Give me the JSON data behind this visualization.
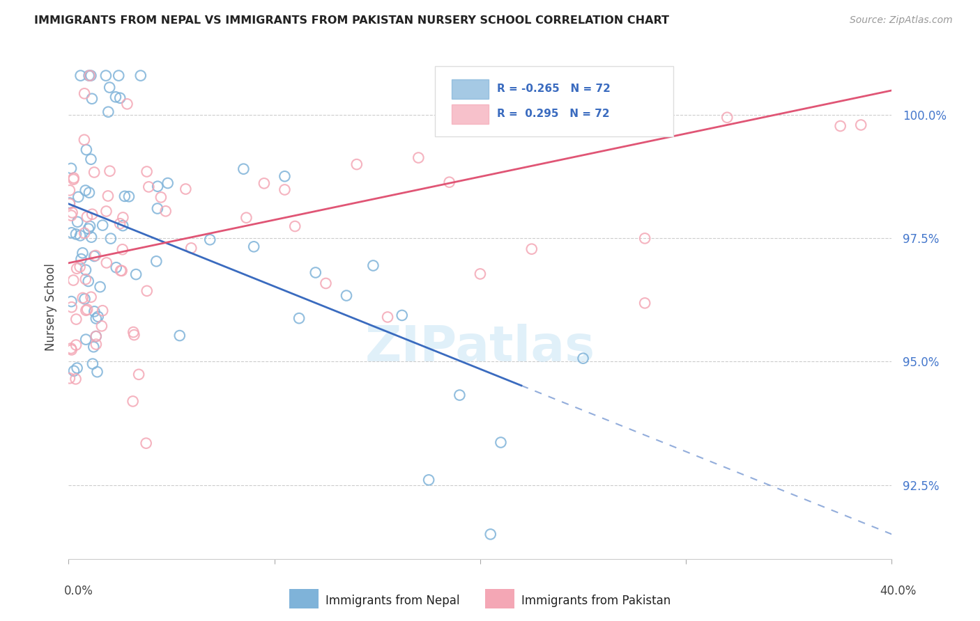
{
  "title": "IMMIGRANTS FROM NEPAL VS IMMIGRANTS FROM PAKISTAN NURSERY SCHOOL CORRELATION CHART",
  "source": "Source: ZipAtlas.com",
  "ylabel": "Nursery School",
  "nepal_color": "#7fb3d9",
  "pakistan_color": "#f4a7b5",
  "line_nepal_color": "#3a6bbf",
  "line_pakistan_color": "#e05575",
  "background_color": "#ffffff",
  "xlim": [
    0.0,
    40.0
  ],
  "ylim": [
    91.0,
    101.2
  ],
  "yticks": [
    92.5,
    95.0,
    97.5,
    100.0
  ],
  "ytick_labels": [
    "92.5%",
    "95.0%",
    "97.5%",
    "100.0%"
  ],
  "figsize": [
    14.06,
    8.92
  ],
  "dpi": 100,
  "nepal_line_x0": 0.0,
  "nepal_line_y0": 98.2,
  "nepal_line_x1": 40.0,
  "nepal_line_y1": 91.5,
  "nepal_solid_end_x": 22.0,
  "pak_line_x0": 0.0,
  "pak_line_y0": 97.0,
  "pak_line_x1": 40.0,
  "pak_line_y1": 100.5,
  "legend_r_nepal": "-0.265",
  "legend_r_pak": "0.295",
  "legend_n": "72",
  "watermark": "ZIPatlas"
}
